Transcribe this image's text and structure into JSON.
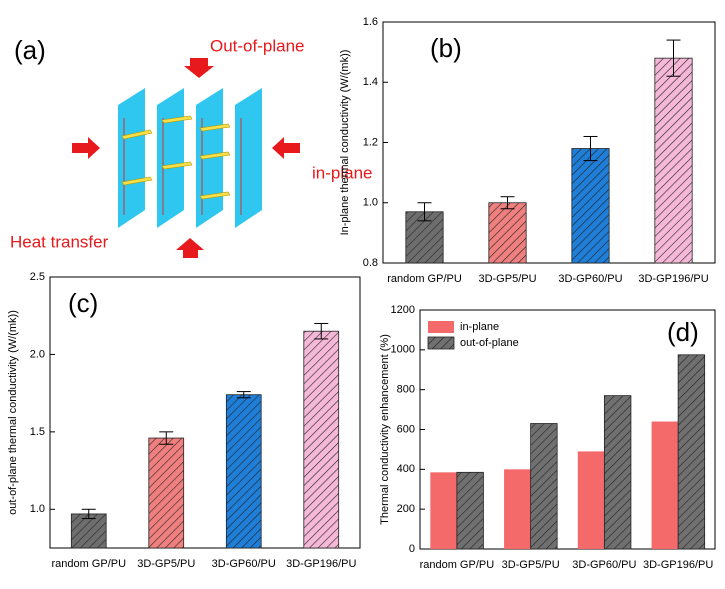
{
  "diagram": {
    "label": "(a)",
    "out_of_plane": "Out-of-plane",
    "in_plane": "in-plane",
    "heat_transfer": "Heat transfer"
  },
  "chart_data": [
    {
      "type": "bar",
      "label": "(b)",
      "ylabel": "In-plane thermal conductivity (W/(mk))",
      "categories": [
        "random GP/PU",
        "3D-GP5/PU",
        "3D-GP60/PU",
        "3D-GP196/PU"
      ],
      "series": [
        {
          "values": [
            0.97,
            1.0,
            1.18,
            1.48
          ],
          "errors": [
            0.03,
            0.02,
            0.04,
            0.06
          ],
          "colors": [
            "#6e6e6e",
            "#f08080",
            "#1e7ed8",
            "#f5b8d8"
          ],
          "hatch": true
        }
      ],
      "ylim": [
        0.8,
        1.6
      ],
      "yticks": [
        0.8,
        {
          "value": 1,
          "label": "1.0"
        },
        1.2,
        1.4,
        1.6
      ]
    },
    {
      "type": "bar",
      "label": "(c)",
      "ylabel": "out-of-plane thermal conductivity (W/(mk))",
      "categories": [
        "random GP/PU",
        "3D-GP5/PU",
        "3D-GP60/PU",
        "3D-GP196/PU"
      ],
      "series": [
        {
          "values": [
            0.97,
            1.46,
            1.74,
            2.15
          ],
          "errors": [
            0.03,
            0.04,
            0.02,
            0.05
          ],
          "colors": [
            "#6e6e6e",
            "#f08080",
            "#1e7ed8",
            "#f5b8d8"
          ],
          "hatch": true
        }
      ],
      "ylim": [
        0.75,
        2.5
      ],
      "yticks": [
        {
          "value": 1,
          "label": "1.0"
        },
        1.5,
        {
          "value": 2,
          "label": "2.0"
        },
        2.5
      ]
    },
    {
      "type": "bar",
      "label": "(d)",
      "ylabel": "Thermal conductivity enhancement (%)",
      "categories": [
        "random GP/PU",
        "3D-GP5/PU",
        "3D-GP60/PU",
        "3D-GP196/PU"
      ],
      "series": [
        {
          "name": "in-plane",
          "values": [
            385,
            400,
            490,
            640
          ],
          "colors": [
            "#f46a6a",
            "#f46a6a",
            "#f46a6a",
            "#f46a6a"
          ],
          "hatch": false
        },
        {
          "name": "out-of-plane",
          "values": [
            385,
            630,
            770,
            975
          ],
          "colors": [
            "#707070",
            "#707070",
            "#707070",
            "#707070"
          ],
          "hatch": true
        }
      ],
      "ylim": [
        0,
        1200
      ],
      "yticks": [
        0,
        200,
        400,
        600,
        800,
        1000,
        1200
      ],
      "legend": "upper left"
    }
  ]
}
